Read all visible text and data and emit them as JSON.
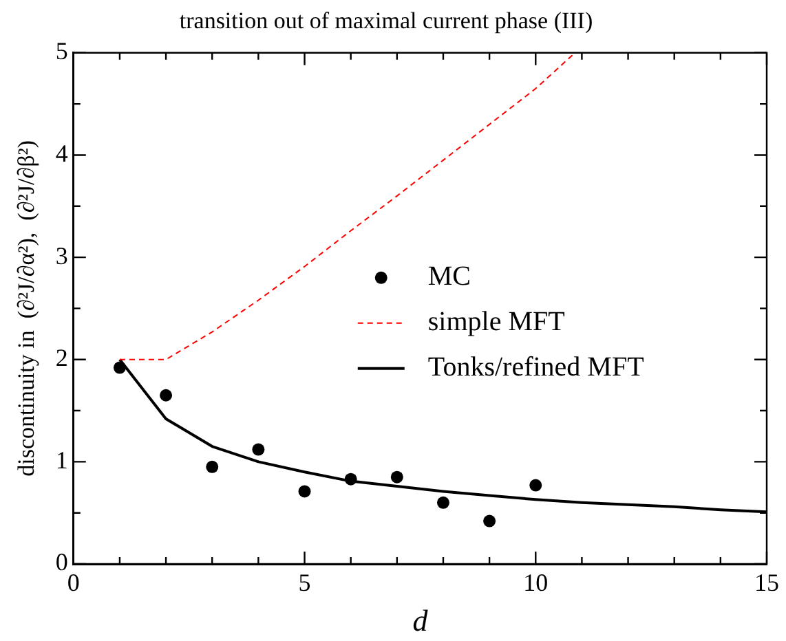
{
  "chart_data": {
    "type": "line",
    "title": "transition out of maximal current phase (III)",
    "xlabel": "d",
    "ylabel": "discontinuity in  (∂²J/∂α²),  (∂²J/∂β²)",
    "xlim": [
      0,
      15
    ],
    "ylim": [
      0,
      5
    ],
    "xticks": [
      0,
      {
        "value": 1,
        "label": null
      },
      {
        "value": 2,
        "label": null
      },
      {
        "value": 3,
        "label": null
      },
      {
        "value": 4,
        "label": null
      },
      5,
      {
        "value": 6,
        "label": null
      },
      {
        "value": 7,
        "label": null
      },
      {
        "value": 8,
        "label": null
      },
      {
        "value": 9,
        "label": null
      },
      10,
      {
        "value": 11,
        "label": null
      },
      {
        "value": 12,
        "label": null
      },
      {
        "value": 13,
        "label": null
      },
      {
        "value": 14,
        "label": null
      },
      15
    ],
    "yticks": [
      0,
      {
        "value": 0.5,
        "label": null
      },
      1,
      {
        "value": 1.5,
        "label": null
      },
      2,
      {
        "value": 2.5,
        "label": null
      },
      3,
      {
        "value": 3.5,
        "label": null
      },
      4,
      {
        "value": 4.5,
        "label": null
      },
      5
    ],
    "grid": false,
    "legend": "right",
    "series": [
      {
        "name": "MC",
        "type": "scatter",
        "marker": "circle",
        "color": "#000000",
        "x": [
          1,
          2,
          3,
          4,
          5,
          6,
          7,
          8,
          9,
          10
        ],
        "values": [
          1.92,
          1.65,
          0.95,
          1.12,
          0.71,
          0.83,
          0.85,
          0.6,
          0.42,
          0.77
        ]
      },
      {
        "name": "simple MFT",
        "type": "line",
        "marker": "none",
        "line_style": "dashed",
        "color": "#ff0000",
        "x": [
          1,
          2,
          3,
          4,
          5,
          6,
          7,
          8,
          9,
          10,
          10.85
        ],
        "values": [
          2,
          2,
          2.27,
          2.58,
          2.91,
          3.26,
          3.6,
          3.95,
          4.3,
          4.65,
          5
        ]
      },
      {
        "name": "Tonks/refined MFT",
        "type": "line",
        "marker": "none",
        "line_style": "solid",
        "color": "#000000",
        "x": [
          1,
          2,
          3,
          4,
          5,
          6,
          7,
          8,
          9,
          10,
          11,
          12,
          13,
          14,
          15
        ],
        "values": [
          2,
          1.42,
          1.15,
          1,
          0.9,
          0.81,
          0.76,
          0.71,
          0.67,
          0.63,
          0.6,
          0.58,
          0.56,
          0.53,
          0.51
        ]
      }
    ]
  }
}
